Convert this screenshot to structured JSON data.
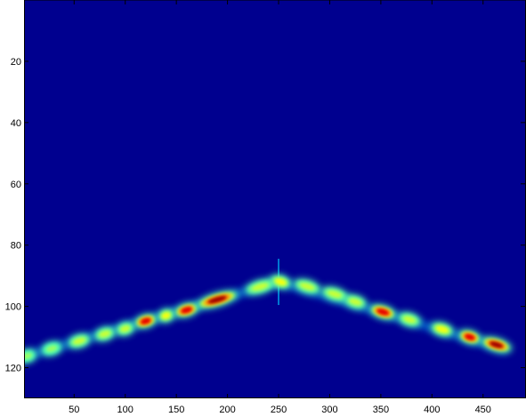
{
  "chart_data": {
    "type": "heatmap",
    "title": "",
    "xlabel": "",
    "ylabel": "",
    "colormap": "jet",
    "background_color": "#00008f",
    "xlim": [
      1,
      492
    ],
    "ylim": [
      0,
      130
    ],
    "y_direction": "reversed",
    "xticks": [
      50,
      100,
      150,
      200,
      250,
      300,
      350,
      400,
      450
    ],
    "yticks": [
      20,
      40,
      60,
      80,
      100,
      120
    ],
    "grid": false,
    "apex": {
      "x": 250,
      "y": 92
    },
    "left_branch": {
      "x_start": 0,
      "y_start": 116.5,
      "x_end": 250,
      "y_end": 92
    },
    "right_branch": {
      "x_start": 250,
      "y_start": 92,
      "x_end": 470,
      "y_end": 114
    },
    "blobs": [
      {
        "x": 4,
        "y": 116.2,
        "intensity": 0.45,
        "length": 10
      },
      {
        "x": 28,
        "y": 113.8,
        "intensity": 0.45,
        "length": 12
      },
      {
        "x": 55,
        "y": 111.3,
        "intensity": 0.5,
        "length": 14
      },
      {
        "x": 80,
        "y": 109.0,
        "intensity": 0.5,
        "length": 12
      },
      {
        "x": 100,
        "y": 107.3,
        "intensity": 0.5,
        "length": 10
      },
      {
        "x": 120,
        "y": 104.8,
        "intensity": 0.8,
        "length": 14
      },
      {
        "x": 140,
        "y": 103.0,
        "intensity": 0.55,
        "length": 8
      },
      {
        "x": 160,
        "y": 101.2,
        "intensity": 0.85,
        "length": 16
      },
      {
        "x": 190,
        "y": 97.8,
        "intensity": 1.0,
        "length": 34
      },
      {
        "x": 232,
        "y": 93.6,
        "intensity": 0.5,
        "length": 22
      },
      {
        "x": 252,
        "y": 92.0,
        "intensity": 0.55,
        "length": 12
      },
      {
        "x": 278,
        "y": 93.5,
        "intensity": 0.5,
        "length": 18
      },
      {
        "x": 305,
        "y": 96.0,
        "intensity": 0.5,
        "length": 18
      },
      {
        "x": 325,
        "y": 98.5,
        "intensity": 0.5,
        "length": 14
      },
      {
        "x": 352,
        "y": 101.8,
        "intensity": 0.85,
        "length": 18
      },
      {
        "x": 378,
        "y": 104.3,
        "intensity": 0.5,
        "length": 14
      },
      {
        "x": 410,
        "y": 107.5,
        "intensity": 0.55,
        "length": 14
      },
      {
        "x": 437,
        "y": 110.0,
        "intensity": 0.85,
        "length": 14
      },
      {
        "x": 463,
        "y": 112.5,
        "intensity": 1.0,
        "length": 22
      }
    ]
  }
}
